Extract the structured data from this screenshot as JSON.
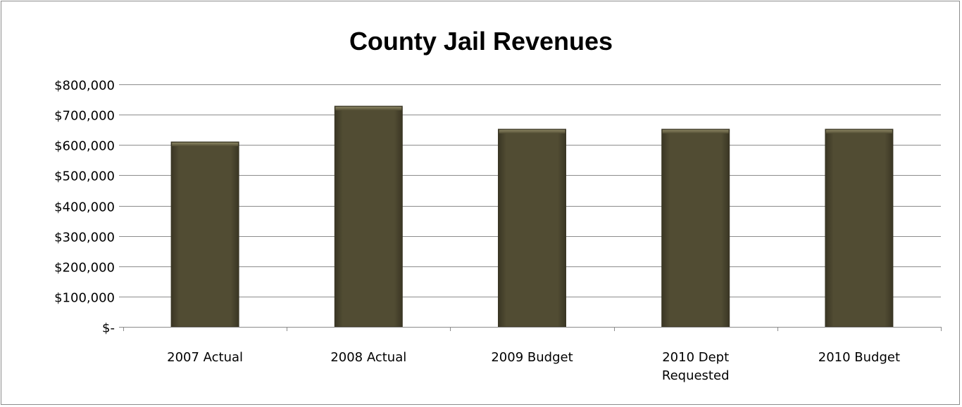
{
  "chart_data": {
    "type": "bar",
    "title": "County Jail Revenues",
    "xlabel": "",
    "ylabel": "",
    "categories": [
      [
        "2007 Actual"
      ],
      [
        "2008 Actual"
      ],
      [
        "2009 Budget"
      ],
      [
        "2010 Dept",
        "Requested"
      ],
      [
        "2010 Budget"
      ]
    ],
    "values": [
      610000,
      728000,
      652000,
      652000,
      652000
    ],
    "ylim": [
      0,
      800000
    ],
    "yticks": [
      0,
      100000,
      200000,
      300000,
      400000,
      500000,
      600000,
      700000,
      800000
    ],
    "ytick_labels": [
      "$-",
      "$100,000",
      "$200,000",
      "$300,000",
      "$400,000",
      "$500,000",
      "$600,000",
      "$700,000",
      "$800,000"
    ],
    "grid": true,
    "legend": "none",
    "colors": {
      "bar": "#514c33",
      "bar_edge": "#3a3624",
      "grid": "#8c8c8c",
      "axis": "#8c8c8c"
    }
  }
}
